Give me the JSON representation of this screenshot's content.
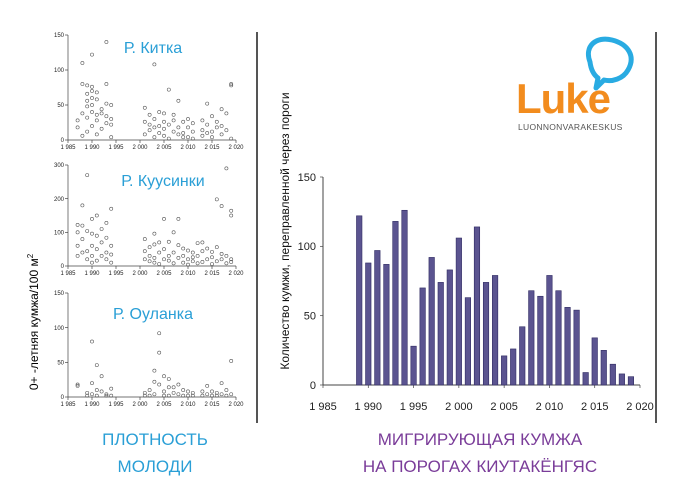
{
  "colors": {
    "river_label": "#2a9fd6",
    "caption_left": "#2a9fd6",
    "caption_right": "#7a3c99",
    "bar_fill": "#5b5490",
    "bar_stroke": "#2f2a62",
    "logo_orange": "#f28c1e",
    "logo_blue": "#29abe2",
    "axis": "#444444"
  },
  "left_ylabel": {
    "prefix": "0+  -летняя кумжа/100 м",
    "sup": "2"
  },
  "logo": {
    "word": "Luke",
    "subtitle": "LUONNONVARAKESKUS"
  },
  "captions": {
    "left": [
      "ПЛОТНОСТЬ",
      "МОЛОДИ"
    ],
    "right": [
      "МИГРИРУЮЩАЯ  КУМЖА",
      "НА ПОРОГАХ  КИУТАКЁНГЯС"
    ]
  },
  "chart_data": [
    {
      "type": "scatter",
      "title": "Р. Китка",
      "xlim": [
        1985,
        2020
      ],
      "ylim": [
        0,
        150
      ],
      "yticks": [
        0,
        50,
        100,
        150
      ],
      "xticks": [
        1985,
        1990,
        1995,
        2000,
        2005,
        2010,
        2015,
        2020
      ],
      "xtick_labels": [
        "1 985",
        "1 990",
        "1 995",
        "2 000",
        "2 005",
        "2 010",
        "2 015",
        "2 020"
      ],
      "points": [
        [
          1987,
          18
        ],
        [
          1987,
          28
        ],
        [
          1988,
          6
        ],
        [
          1988,
          38
        ],
        [
          1988,
          80
        ],
        [
          1988,
          110
        ],
        [
          1989,
          12
        ],
        [
          1989,
          32
        ],
        [
          1989,
          48
        ],
        [
          1989,
          56
        ],
        [
          1989,
          66
        ],
        [
          1989,
          78
        ],
        [
          1990,
          20
        ],
        [
          1990,
          40
        ],
        [
          1990,
          50
        ],
        [
          1990,
          60
        ],
        [
          1990,
          70
        ],
        [
          1990,
          76
        ],
        [
          1990,
          122
        ],
        [
          1991,
          8
        ],
        [
          1991,
          28
        ],
        [
          1991,
          36
        ],
        [
          1991,
          58
        ],
        [
          1991,
          68
        ],
        [
          1992,
          16
        ],
        [
          1992,
          38
        ],
        [
          1992,
          44
        ],
        [
          1993,
          24
        ],
        [
          1993,
          34
        ],
        [
          1993,
          52
        ],
        [
          1993,
          80
        ],
        [
          1993,
          140
        ],
        [
          1994,
          4
        ],
        [
          1994,
          22
        ],
        [
          1994,
          30
        ],
        [
          1994,
          50
        ],
        [
          2001,
          8
        ],
        [
          2001,
          26
        ],
        [
          2001,
          46
        ],
        [
          2002,
          14
        ],
        [
          2002,
          22
        ],
        [
          2002,
          36
        ],
        [
          2003,
          4
        ],
        [
          2003,
          18
        ],
        [
          2003,
          30
        ],
        [
          2003,
          108
        ],
        [
          2004,
          10
        ],
        [
          2004,
          20
        ],
        [
          2004,
          40
        ],
        [
          2005,
          6
        ],
        [
          2005,
          16
        ],
        [
          2005,
          26
        ],
        [
          2005,
          38
        ],
        [
          2006,
          2
        ],
        [
          2006,
          22
        ],
        [
          2006,
          72
        ],
        [
          2007,
          12
        ],
        [
          2007,
          28
        ],
        [
          2007,
          36
        ],
        [
          2008,
          8
        ],
        [
          2008,
          18
        ],
        [
          2008,
          56
        ],
        [
          2009,
          4
        ],
        [
          2009,
          10
        ],
        [
          2009,
          26
        ],
        [
          2010,
          4
        ],
        [
          2010,
          18
        ],
        [
          2010,
          30
        ],
        [
          2011,
          2
        ],
        [
          2011,
          12
        ],
        [
          2011,
          24
        ],
        [
          2013,
          6
        ],
        [
          2013,
          14
        ],
        [
          2013,
          28
        ],
        [
          2014,
          10
        ],
        [
          2014,
          22
        ],
        [
          2014,
          52
        ],
        [
          2015,
          4
        ],
        [
          2015,
          12
        ],
        [
          2015,
          34
        ],
        [
          2016,
          18
        ],
        [
          2016,
          26
        ],
        [
          2017,
          8
        ],
        [
          2017,
          20
        ],
        [
          2017,
          44
        ],
        [
          2018,
          14
        ],
        [
          2018,
          38
        ],
        [
          2019,
          2
        ],
        [
          2019,
          80
        ],
        [
          2019,
          78
        ]
      ]
    },
    {
      "type": "scatter",
      "title": "Р. Куусинки",
      "xlim": [
        1985,
        2020
      ],
      "ylim": [
        0,
        300
      ],
      "yticks": [
        0,
        100,
        200,
        300
      ],
      "xticks": [
        1985,
        1990,
        1995,
        2000,
        2005,
        2010,
        2015,
        2020
      ],
      "xtick_labels": [
        "1 985",
        "1 990",
        "1 995",
        "2 000",
        "2 005",
        "2 010",
        "2 015",
        "2 020"
      ],
      "points": [
        [
          1987,
          30
        ],
        [
          1987,
          60
        ],
        [
          1987,
          100
        ],
        [
          1987,
          122
        ],
        [
          1988,
          40
        ],
        [
          1988,
          80
        ],
        [
          1988,
          120
        ],
        [
          1988,
          180
        ],
        [
          1989,
          20
        ],
        [
          1989,
          44
        ],
        [
          1989,
          104
        ],
        [
          1989,
          270
        ],
        [
          1990,
          10
        ],
        [
          1990,
          30
        ],
        [
          1990,
          60
        ],
        [
          1990,
          96
        ],
        [
          1990,
          140
        ],
        [
          1991,
          16
        ],
        [
          1991,
          50
        ],
        [
          1991,
          90
        ],
        [
          1991,
          150
        ],
        [
          1992,
          30
        ],
        [
          1992,
          70
        ],
        [
          1992,
          110
        ],
        [
          1993,
          20
        ],
        [
          1993,
          40
        ],
        [
          1993,
          84
        ],
        [
          1993,
          128
        ],
        [
          1994,
          10
        ],
        [
          1994,
          34
        ],
        [
          1994,
          60
        ],
        [
          1994,
          170
        ],
        [
          2001,
          20
        ],
        [
          2001,
          44
        ],
        [
          2001,
          80
        ],
        [
          2002,
          14
        ],
        [
          2002,
          30
        ],
        [
          2002,
          56
        ],
        [
          2003,
          10
        ],
        [
          2003,
          24
        ],
        [
          2003,
          64
        ],
        [
          2003,
          96
        ],
        [
          2004,
          6
        ],
        [
          2004,
          40
        ],
        [
          2004,
          70
        ],
        [
          2005,
          20
        ],
        [
          2005,
          50
        ],
        [
          2005,
          140
        ],
        [
          2006,
          16
        ],
        [
          2006,
          30
        ],
        [
          2006,
          72
        ],
        [
          2007,
          8
        ],
        [
          2007,
          40
        ],
        [
          2007,
          100
        ],
        [
          2008,
          24
        ],
        [
          2008,
          62
        ],
        [
          2008,
          140
        ],
        [
          2009,
          10
        ],
        [
          2009,
          30
        ],
        [
          2009,
          52
        ],
        [
          2010,
          4
        ],
        [
          2010,
          20
        ],
        [
          2010,
          46
        ],
        [
          2011,
          14
        ],
        [
          2011,
          26
        ],
        [
          2011,
          40
        ],
        [
          2012,
          8
        ],
        [
          2012,
          30
        ],
        [
          2012,
          68
        ],
        [
          2013,
          12
        ],
        [
          2013,
          44
        ],
        [
          2013,
          70
        ],
        [
          2014,
          20
        ],
        [
          2014,
          52
        ],
        [
          2015,
          6
        ],
        [
          2015,
          26
        ],
        [
          2015,
          42
        ],
        [
          2016,
          14
        ],
        [
          2016,
          56
        ],
        [
          2016,
          198
        ],
        [
          2017,
          20
        ],
        [
          2017,
          36
        ],
        [
          2017,
          178
        ],
        [
          2018,
          8
        ],
        [
          2018,
          30
        ],
        [
          2018,
          290
        ],
        [
          2019,
          12
        ],
        [
          2019,
          20
        ],
        [
          2019,
          150
        ],
        [
          2019,
          164
        ]
      ]
    },
    {
      "type": "scatter",
      "title": "Р. Оуланка",
      "xlim": [
        1985,
        2020
      ],
      "ylim": [
        0,
        150
      ],
      "yticks": [
        0,
        50,
        100,
        150
      ],
      "xticks": [
        1985,
        1990,
        1995,
        2000,
        2005,
        2010,
        2015,
        2020
      ],
      "xtick_labels": [
        "1 985",
        "1 990",
        "1 995",
        "2 000",
        "2 005",
        "2 010",
        "2 015",
        "2 020"
      ],
      "points": [
        [
          1987,
          18
        ],
        [
          1987,
          16
        ],
        [
          1989,
          2
        ],
        [
          1989,
          6
        ],
        [
          1990,
          20
        ],
        [
          1990,
          80
        ],
        [
          1990,
          4
        ],
        [
          1991,
          46
        ],
        [
          1991,
          10
        ],
        [
          1991,
          2
        ],
        [
          1992,
          30
        ],
        [
          1992,
          8
        ],
        [
          1993,
          4
        ],
        [
          1993,
          2
        ],
        [
          1994,
          12
        ],
        [
          1994,
          2
        ],
        [
          2001,
          2
        ],
        [
          2001,
          6
        ],
        [
          2002,
          10
        ],
        [
          2002,
          2
        ],
        [
          2003,
          38
        ],
        [
          2003,
          22
        ],
        [
          2003,
          4
        ],
        [
          2004,
          92
        ],
        [
          2004,
          64
        ],
        [
          2004,
          18
        ],
        [
          2005,
          30
        ],
        [
          2005,
          8
        ],
        [
          2005,
          2
        ],
        [
          2006,
          26
        ],
        [
          2006,
          14
        ],
        [
          2006,
          2
        ],
        [
          2007,
          14
        ],
        [
          2007,
          6
        ],
        [
          2008,
          18
        ],
        [
          2008,
          4
        ],
        [
          2009,
          10
        ],
        [
          2009,
          2
        ],
        [
          2010,
          2
        ],
        [
          2010,
          8
        ],
        [
          2011,
          2
        ],
        [
          2011,
          6
        ],
        [
          2013,
          8
        ],
        [
          2013,
          2
        ],
        [
          2014,
          16
        ],
        [
          2014,
          4
        ],
        [
          2015,
          2
        ],
        [
          2015,
          8
        ],
        [
          2016,
          2
        ],
        [
          2016,
          6
        ],
        [
          2017,
          4
        ],
        [
          2017,
          20
        ],
        [
          2018,
          2
        ],
        [
          2018,
          10
        ],
        [
          2019,
          52
        ],
        [
          2019,
          4
        ]
      ]
    },
    {
      "type": "bar",
      "ylabel": "Количество кумжи, переправленной через пороги",
      "xlim": [
        1985,
        2020
      ],
      "ylim": [
        0,
        150
      ],
      "yticks": [
        0,
        50,
        100,
        150
      ],
      "xticks": [
        1985,
        1990,
        1995,
        2000,
        2005,
        2010,
        2015,
        2020
      ],
      "xtick_labels": [
        "1 985",
        "1 990",
        "1 995",
        "2 000",
        "2 005",
        "2 010",
        "2 015",
        "2 020"
      ],
      "x": [
        1989,
        1990,
        1991,
        1992,
        1993,
        1994,
        1995,
        1996,
        1997,
        1998,
        1999,
        2000,
        2001,
        2002,
        2003,
        2004,
        2005,
        2006,
        2007,
        2008,
        2009,
        2010,
        2011,
        2012,
        2013,
        2014,
        2015,
        2016,
        2017,
        2018,
        2019
      ],
      "values": [
        122,
        88,
        97,
        87,
        118,
        126,
        28,
        70,
        92,
        74,
        83,
        106,
        63,
        114,
        74,
        79,
        21,
        26,
        42,
        68,
        64,
        79,
        68,
        56,
        54,
        9,
        34,
        25,
        15,
        8,
        6
      ]
    }
  ]
}
